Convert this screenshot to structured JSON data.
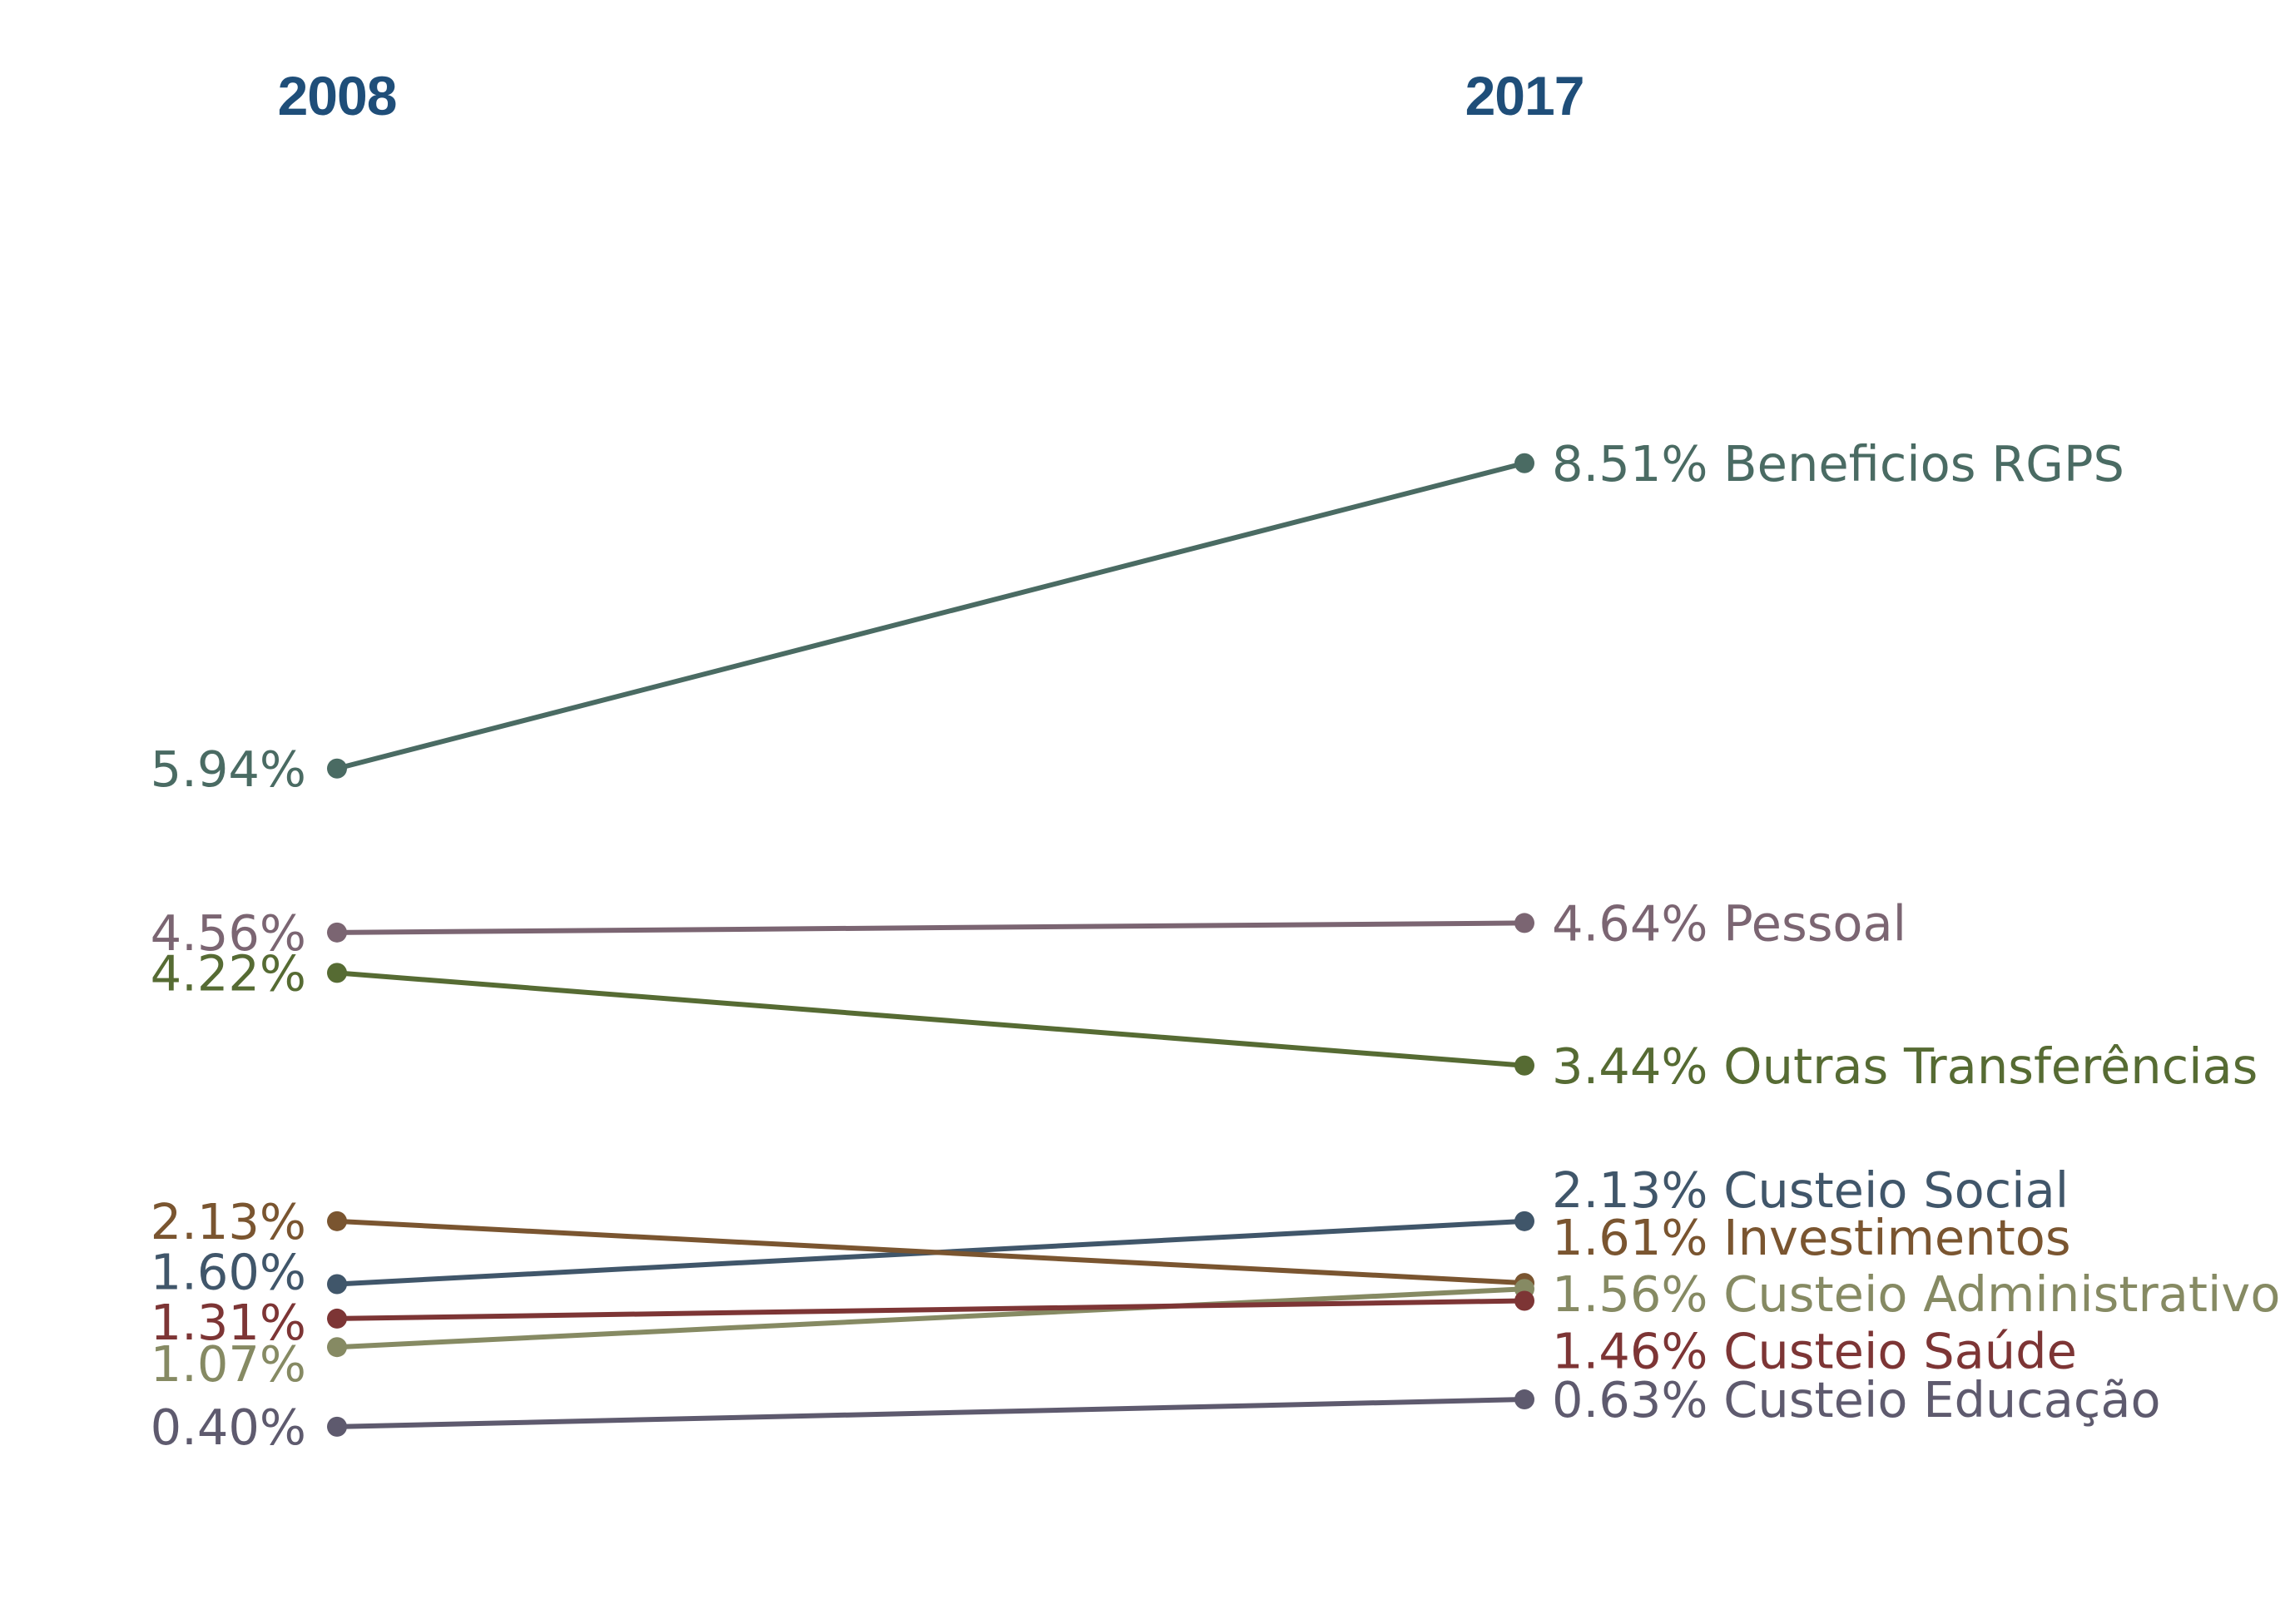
{
  "chart_data": {
    "type": "slope",
    "x": [
      "2008",
      "2017"
    ],
    "series": [
      {
        "name": "Beneficios RGPS",
        "values": [
          5.94,
          8.51
        ],
        "left_label": "5.94%",
        "right_label": "8.51% Beneficios RGPS",
        "color": "#4a6b63"
      },
      {
        "name": "Pessoal",
        "values": [
          4.56,
          4.64
        ],
        "left_label": "4.56%",
        "right_label": "4.64% Pessoal",
        "color": "#7b6572"
      },
      {
        "name": "Outras Transferências",
        "values": [
          4.22,
          3.44
        ],
        "left_label": "4.22%",
        "right_label": "3.44% Outras Transferências",
        "color": "#566b33"
      },
      {
        "name": "Custeio Social",
        "values": [
          1.6,
          2.13
        ],
        "left_label": "1.60%",
        "right_label": "2.13% Custeio Social",
        "color": "#40566a"
      },
      {
        "name": "Investimentos",
        "values": [
          2.13,
          1.61
        ],
        "left_label": "2.13%",
        "right_label": "1.61% Investimentos",
        "color": "#7a5530"
      },
      {
        "name": "Custeio Administrativo",
        "values": [
          1.07,
          1.56
        ],
        "left_label": "1.07%",
        "right_label": "1.56% Custeio Administrativo",
        "color": "#868a63"
      },
      {
        "name": "Custeio Saúde",
        "values": [
          1.31,
          1.46
        ],
        "left_label": "1.31%",
        "right_label": "1.46% Custeio Saúde",
        "color": "#7d3535"
      },
      {
        "name": "Custeio Educação",
        "values": [
          0.4,
          0.63
        ],
        "left_label": "0.40%",
        "right_label": "0.63% Custeio Educação",
        "color": "#5e5a6e"
      }
    ]
  }
}
